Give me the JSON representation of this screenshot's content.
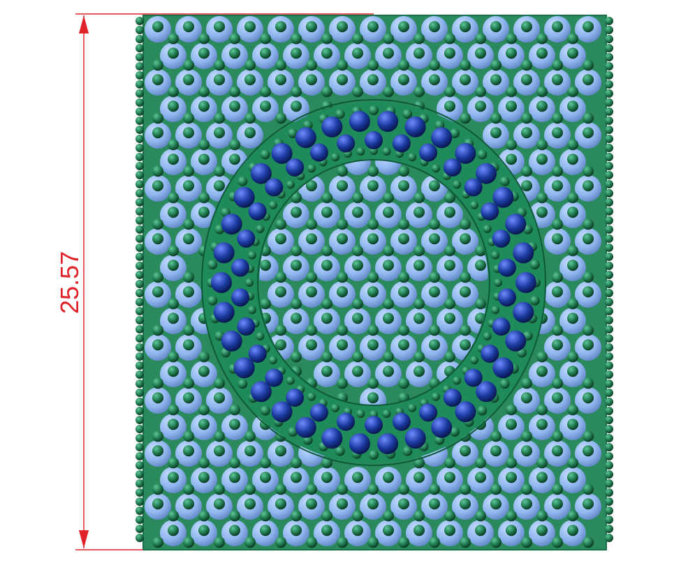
{
  "dimension": {
    "value": "25.57",
    "color": "#e0232a"
  },
  "colors": {
    "lattice_large": "#8fb6ee",
    "lattice_small": "#1f7a4f",
    "ring_atoms": "#1a3aa0",
    "sheet_edge": "#187048"
  }
}
